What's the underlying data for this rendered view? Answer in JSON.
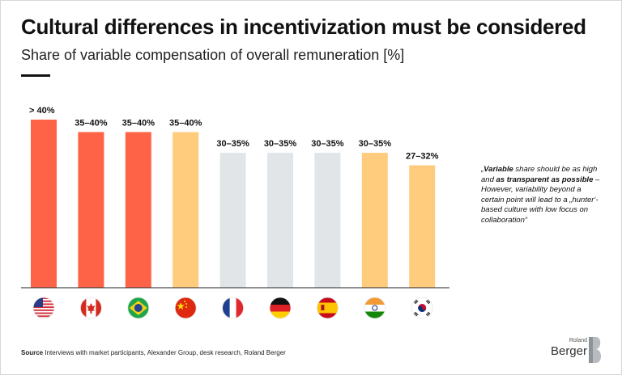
{
  "title": "Cultural differences in incentivization must be considered",
  "subtitle": "Share of variable compensation of overall remuneration [%]",
  "quote": {
    "open": "„",
    "b1": "Variable",
    "t1": " share should be as high and ",
    "b2": "as transparent as possible",
    "t2": " – However, variability beyond a certain point will lead to a „hunter‘-based culture with low focus on collaboration“"
  },
  "source": {
    "label": "Source",
    "text": " Interviews with market participants, Alexander Group, desk research, Roland Berger"
  },
  "logo": {
    "small": "Roland",
    "big": "Berger"
  },
  "colors": {
    "high": "#ff6347",
    "medium": "#ffcc7e",
    "low": "#e2e5e7"
  },
  "chart_data": {
    "type": "bar",
    "categories": [
      "USA",
      "Canada",
      "Brazil",
      "China",
      "France",
      "Germany",
      "Spain",
      "India",
      "South Korea"
    ],
    "values": [
      40.5,
      37.5,
      37.5,
      37.5,
      32.5,
      32.5,
      32.5,
      32.5,
      29.5
    ],
    "value_labels": [
      "> 40%",
      "35–40%",
      "35–40%",
      "35–40%",
      "30–35%",
      "30–35%",
      "30–35%",
      "30–35%",
      "27–32%"
    ],
    "bar_colors": [
      "high",
      "high",
      "high",
      "medium",
      "low",
      "low",
      "low",
      "medium",
      "medium"
    ],
    "icons": [
      "flag-usa-icon",
      "flag-canada-icon",
      "flag-brazil-icon",
      "flag-china-icon",
      "flag-france-icon",
      "flag-germany-icon",
      "flag-spain-icon",
      "flag-india-icon",
      "flag-south-korea-icon"
    ],
    "ylim": [
      0,
      40.5
    ],
    "grid": false,
    "legend": "none"
  }
}
